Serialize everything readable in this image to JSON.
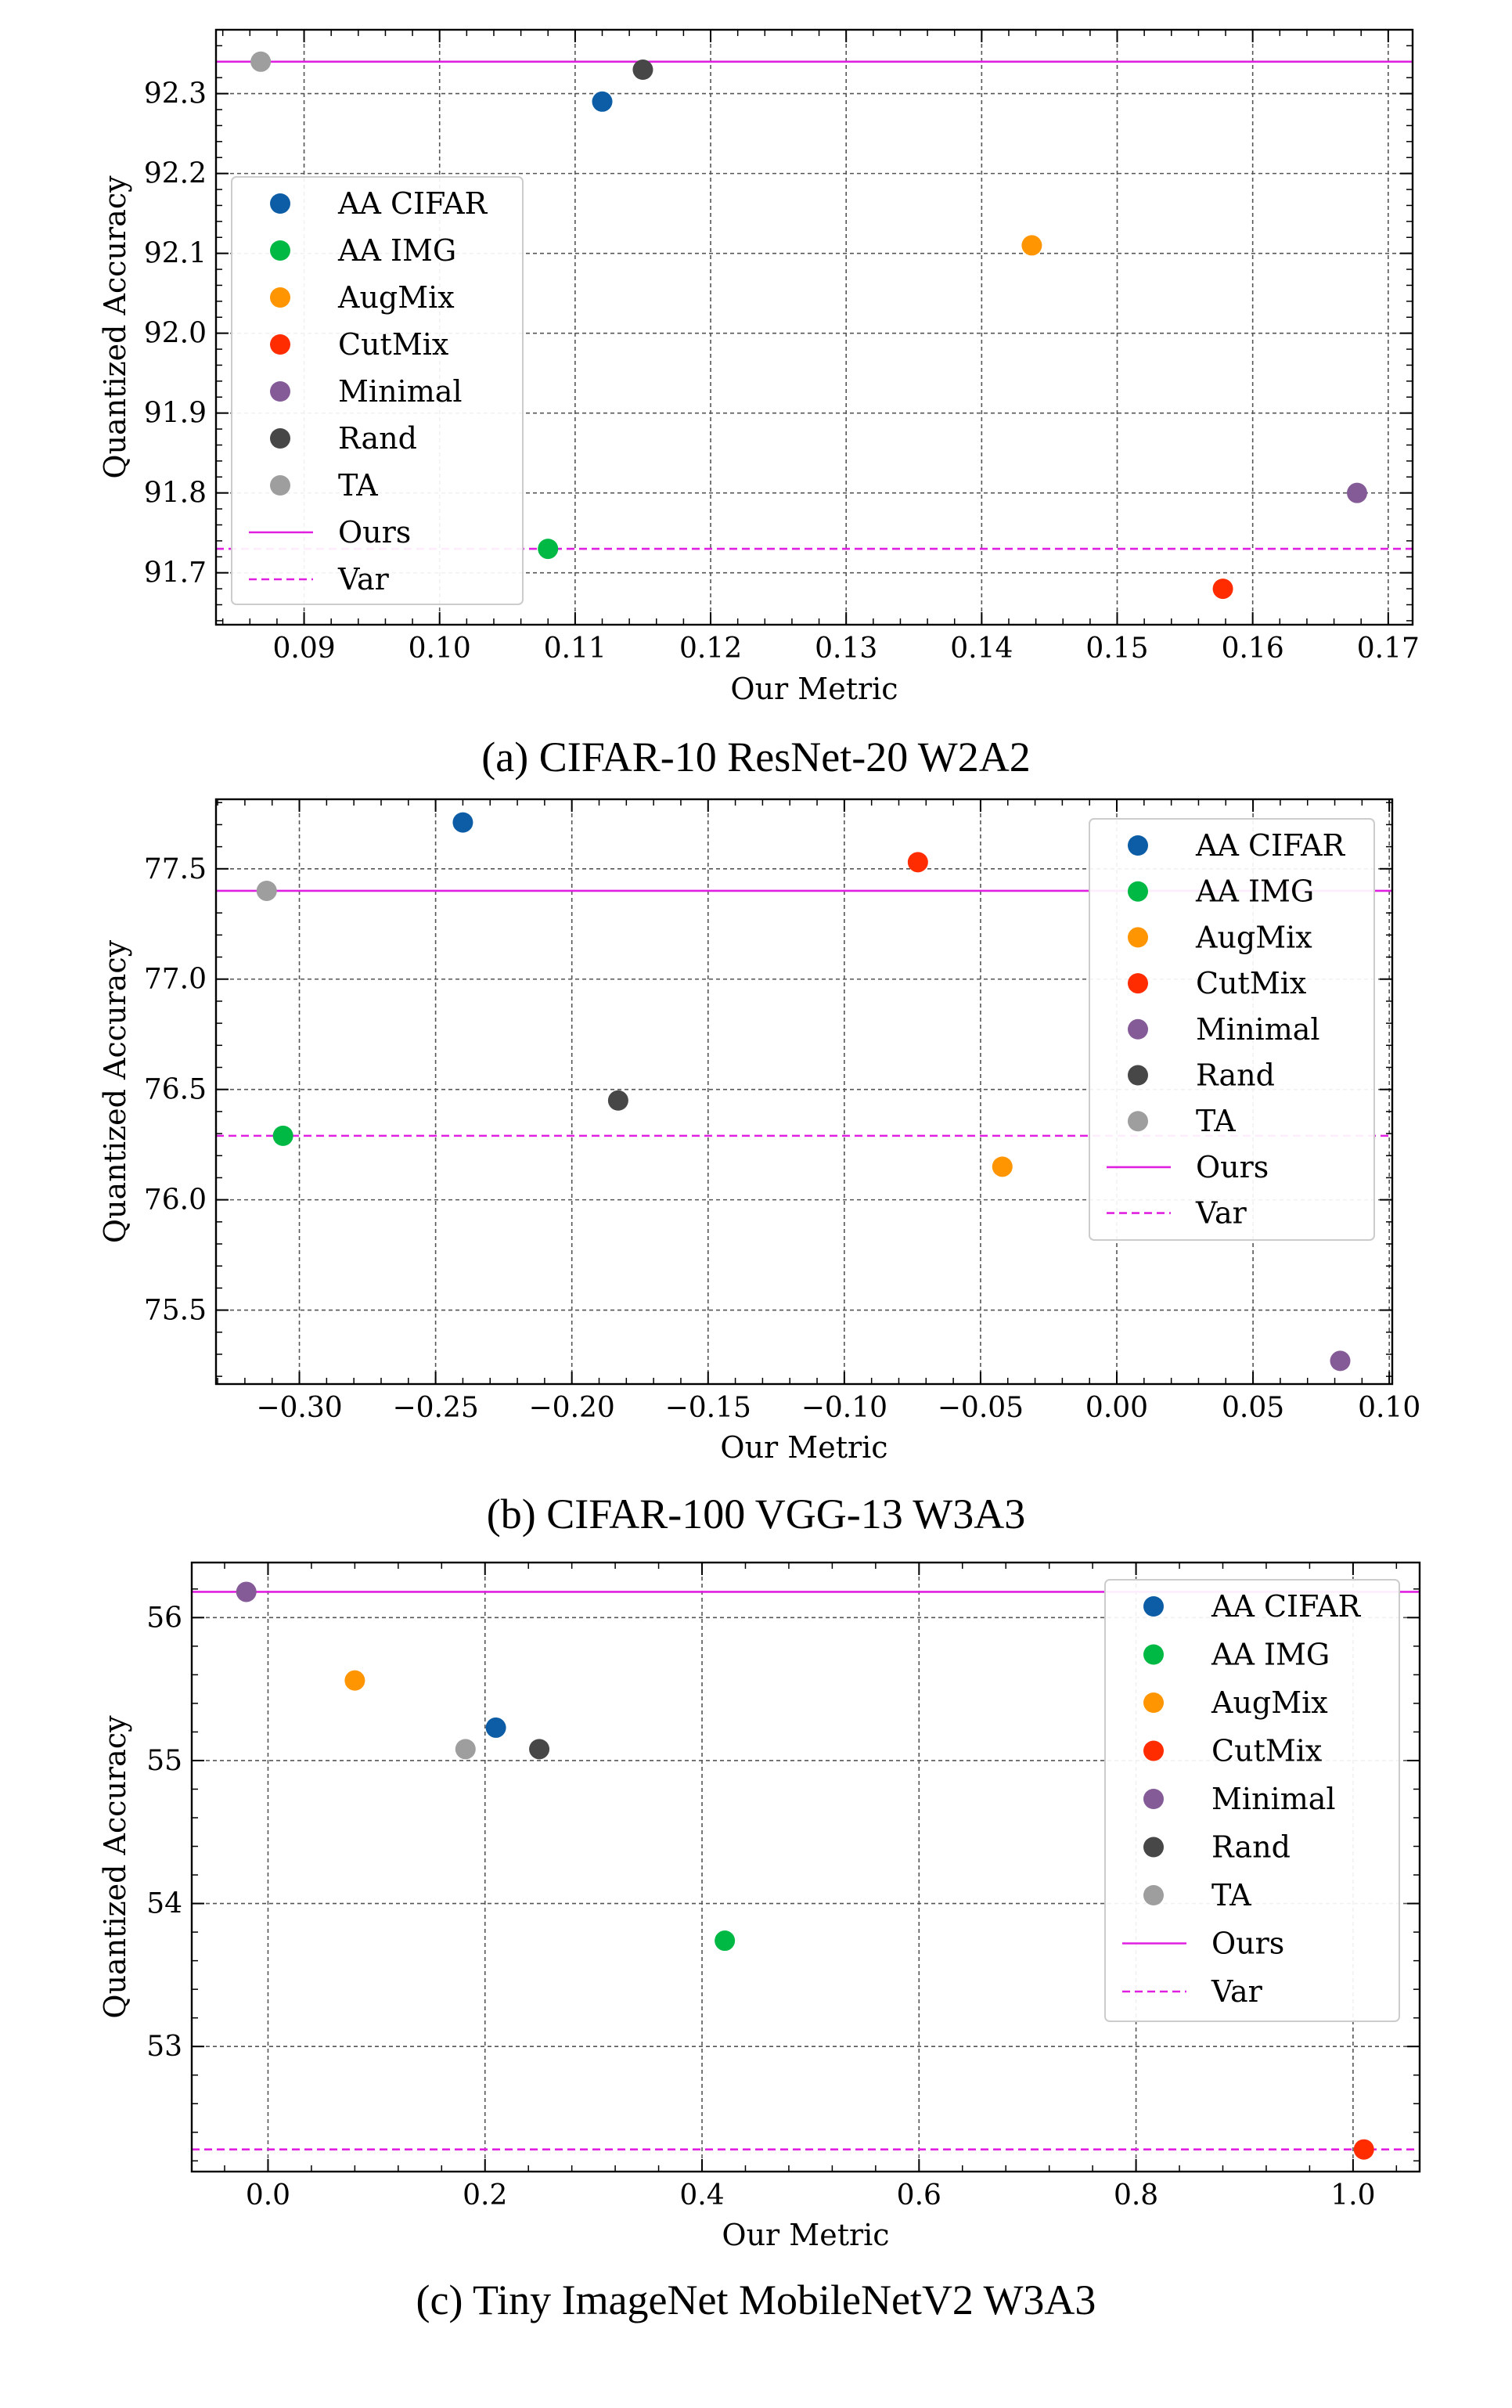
{
  "chart_data": [
    {
      "type": "scatter",
      "caption": "(a) CIFAR-10 ResNet-20 W2A2",
      "xlabel": "Our Metric",
      "ylabel": "Quantized Accuracy",
      "xlim": [
        0.0835,
        0.1718
      ],
      "ylim": [
        91.635,
        92.38
      ],
      "xticks": [
        0.09,
        0.1,
        0.11,
        0.12,
        0.13,
        0.14,
        0.15,
        0.16,
        0.17
      ],
      "xtick_labels": [
        "0.09",
        "0.10",
        "0.11",
        "0.12",
        "0.13",
        "0.14",
        "0.15",
        "0.16",
        "0.17"
      ],
      "yticks": [
        91.7,
        91.8,
        91.9,
        92.0,
        92.1,
        92.2,
        92.3
      ],
      "ytick_labels": [
        "91.7",
        "91.8",
        "91.9",
        "92.0",
        "92.1",
        "92.2",
        "92.3"
      ],
      "grid": true,
      "legend_position": "left",
      "series": [
        {
          "name": "AA CIFAR",
          "color": "#0c5da5",
          "points": [
            [
              0.112,
              92.29
            ]
          ]
        },
        {
          "name": "AA IMG",
          "color": "#00b945",
          "points": [
            [
              0.108,
              91.73
            ]
          ]
        },
        {
          "name": "AugMix",
          "color": "#ff9500",
          "points": [
            [
              0.1437,
              92.11
            ]
          ]
        },
        {
          "name": "CutMix",
          "color": "#ff2c00",
          "points": [
            [
              0.1578,
              91.68
            ]
          ]
        },
        {
          "name": "Minimal",
          "color": "#845b97",
          "points": [
            [
              0.1677,
              91.8
            ]
          ]
        },
        {
          "name": "Rand",
          "color": "#474747",
          "points": [
            [
              0.115,
              92.33
            ]
          ]
        },
        {
          "name": "TA",
          "color": "#9e9e9e",
          "points": [
            [
              0.0868,
              92.34
            ]
          ]
        }
      ],
      "hlines": [
        {
          "name": "Ours",
          "y": 92.34,
          "color": "#e020e0",
          "style": "solid"
        },
        {
          "name": "Var",
          "y": 91.73,
          "color": "#e020e0",
          "style": "dashed"
        }
      ]
    },
    {
      "type": "scatter",
      "caption": "(b) CIFAR-100 VGG-13 W3A3",
      "xlabel": "Our Metric",
      "ylabel": "Quantized Accuracy",
      "xlim": [
        -0.3306,
        0.1011
      ],
      "ylim": [
        75.165,
        77.815
      ],
      "xticks": [
        -0.3,
        -0.25,
        -0.2,
        -0.15,
        -0.1,
        -0.05,
        0.0,
        0.05,
        0.1
      ],
      "xtick_labels": [
        "−0.30",
        "−0.25",
        "−0.20",
        "−0.15",
        "−0.10",
        "−0.05",
        "0.00",
        "0.05",
        "0.10"
      ],
      "yticks": [
        75.5,
        76.0,
        76.5,
        77.0,
        77.5
      ],
      "ytick_labels": [
        "75.5",
        "76.0",
        "76.5",
        "77.0",
        "77.5"
      ],
      "grid": true,
      "legend_position": "top-right",
      "series": [
        {
          "name": "AA CIFAR",
          "color": "#0c5da5",
          "points": [
            [
              -0.24,
              77.71
            ]
          ]
        },
        {
          "name": "AA IMG",
          "color": "#00b945",
          "points": [
            [
              -0.306,
              76.29
            ]
          ]
        },
        {
          "name": "AugMix",
          "color": "#ff9500",
          "points": [
            [
              -0.042,
              76.15
            ]
          ]
        },
        {
          "name": "CutMix",
          "color": "#ff2c00",
          "points": [
            [
              -0.073,
              77.53
            ]
          ]
        },
        {
          "name": "Minimal",
          "color": "#845b97",
          "points": [
            [
              0.082,
              75.27
            ]
          ]
        },
        {
          "name": "Rand",
          "color": "#474747",
          "points": [
            [
              -0.183,
              76.45
            ]
          ]
        },
        {
          "name": "TA",
          "color": "#9e9e9e",
          "points": [
            [
              -0.312,
              77.4
            ]
          ]
        }
      ],
      "hlines": [
        {
          "name": "Ours",
          "y": 77.4,
          "color": "#e020e0",
          "style": "solid"
        },
        {
          "name": "Var",
          "y": 76.29,
          "color": "#e020e0",
          "style": "dashed"
        }
      ]
    },
    {
      "type": "scatter",
      "caption": "(c) Tiny ImageNet MobileNetV2 W3A3",
      "xlabel": "Our Metric",
      "ylabel": "Quantized Accuracy",
      "xlim": [
        -0.0703,
        1.0614
      ],
      "ylim": [
        52.125,
        56.385
      ],
      "xticks": [
        0.0,
        0.2,
        0.4,
        0.6,
        0.8,
        1.0
      ],
      "xtick_labels": [
        "0.0",
        "0.2",
        "0.4",
        "0.6",
        "0.8",
        "1.0"
      ],
      "yticks": [
        53,
        54,
        55,
        56
      ],
      "ytick_labels": [
        "53",
        "54",
        "55",
        "56"
      ],
      "grid": true,
      "legend_position": "top-right",
      "series": [
        {
          "name": "AA CIFAR",
          "color": "#0c5da5",
          "points": [
            [
              0.21,
              55.23
            ]
          ]
        },
        {
          "name": "AA IMG",
          "color": "#00b945",
          "points": [
            [
              0.421,
              53.74
            ]
          ]
        },
        {
          "name": "AugMix",
          "color": "#ff9500",
          "points": [
            [
              0.08,
              55.56
            ]
          ]
        },
        {
          "name": "CutMix",
          "color": "#ff2c00",
          "points": [
            [
              1.01,
              52.28
            ]
          ]
        },
        {
          "name": "Minimal",
          "color": "#845b97",
          "points": [
            [
              -0.02,
              56.18
            ]
          ]
        },
        {
          "name": "Rand",
          "color": "#474747",
          "points": [
            [
              0.25,
              55.08
            ]
          ]
        },
        {
          "name": "TA",
          "color": "#9e9e9e",
          "points": [
            [
              0.182,
              55.08
            ]
          ]
        }
      ],
      "hlines": [
        {
          "name": "Ours",
          "y": 56.18,
          "color": "#e020e0",
          "style": "solid"
        },
        {
          "name": "Var",
          "y": 52.28,
          "color": "#e020e0",
          "style": "dashed"
        }
      ]
    }
  ]
}
